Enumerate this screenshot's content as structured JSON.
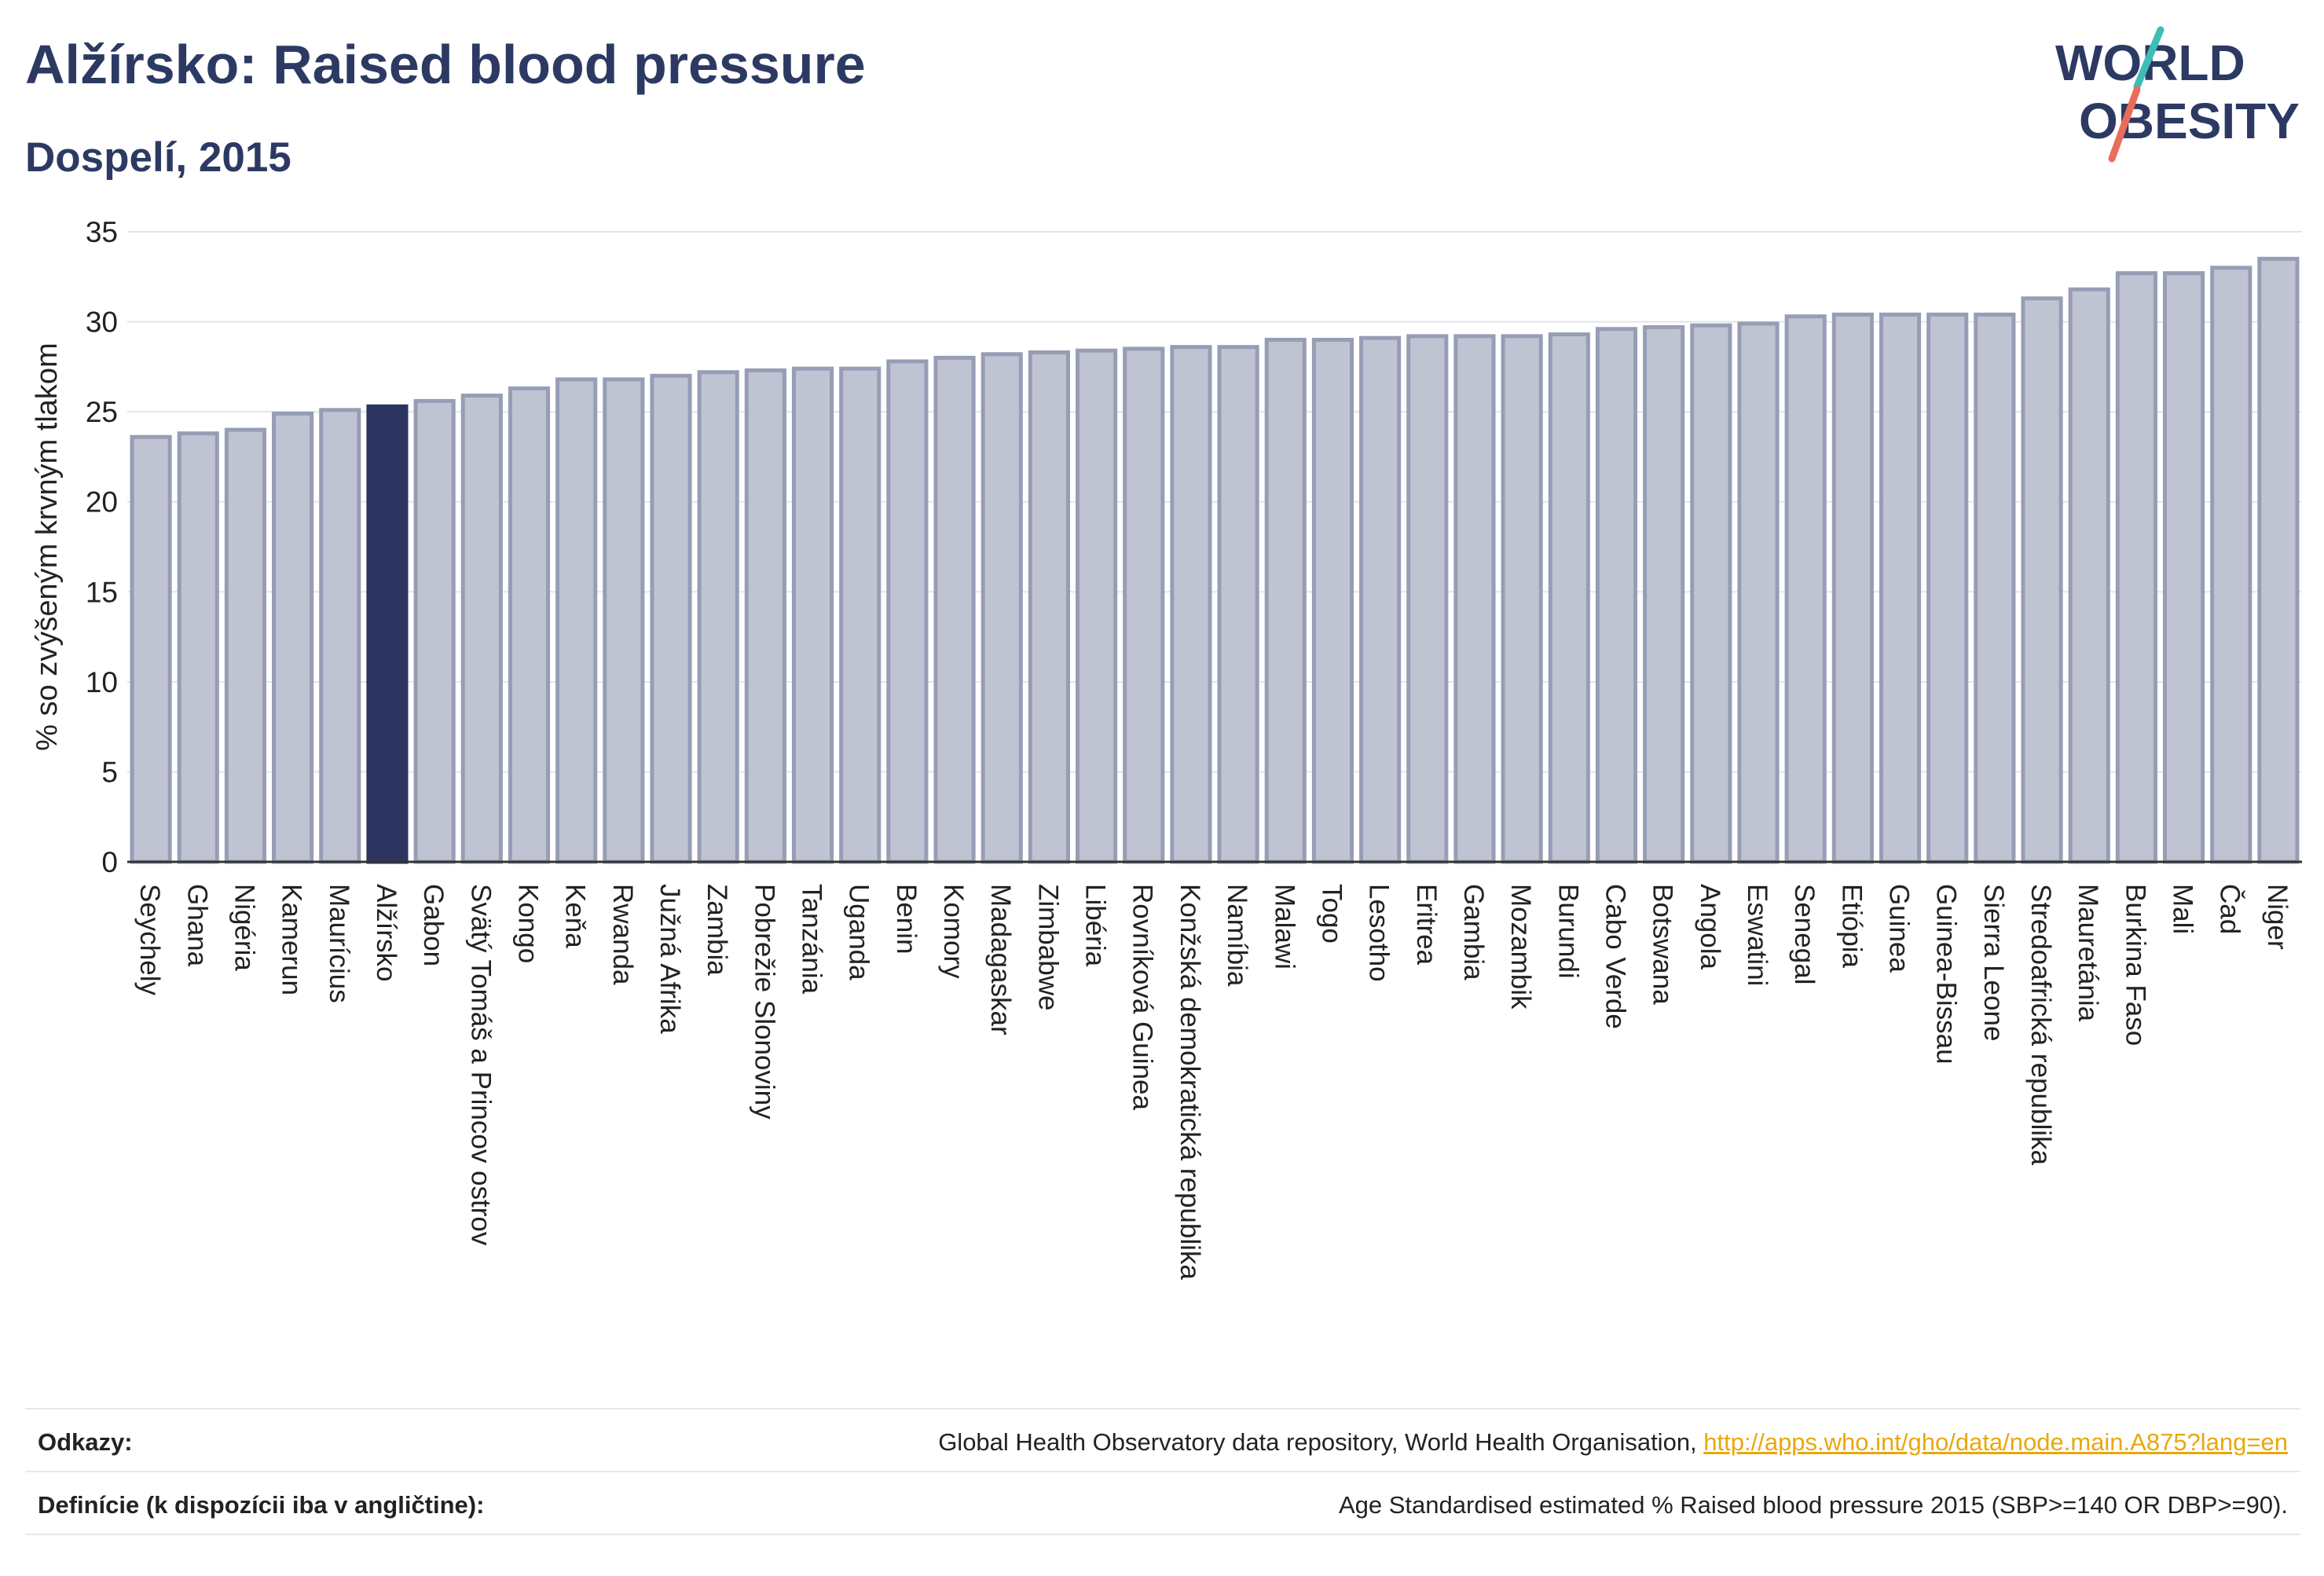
{
  "header": {
    "title": "Alžírsko: Raised blood pressure",
    "subtitle": "Dospelí, 2015"
  },
  "logo": {
    "line1": "WORLD",
    "line2": "OBESITY"
  },
  "footer": {
    "references_label": "Odkazy:",
    "references_text": "Global Health Observatory data repository, World Health Organisation, ",
    "references_link": "http://apps.who.int/gho/data/node.main.A875?lang=en",
    "definitions_label": "Definície (k dispozícii iba v angličtine):",
    "definitions_text": "Age Standardised estimated % Raised blood pressure 2015 (SBP>=140 OR DBP>=90)."
  },
  "colors": {
    "highlight": "#2c3560",
    "bar": "#c0c4d2",
    "bar_stroke": "#969db5",
    "title": "#2c3a63",
    "logo_teal": "#3dbdb6",
    "logo_coral": "#ea6d5c"
  },
  "chart_data": {
    "type": "bar",
    "ylabel": "% so zvýšeným krvným tlakom",
    "ylim": [
      0,
      35
    ],
    "yticks": [
      0,
      5,
      10,
      15,
      20,
      25,
      30,
      35
    ],
    "grid": true,
    "highlight": "Alžírsko",
    "categories": [
      "Seychely",
      "Ghana",
      "Nigéria",
      "Kamerun",
      "Maurícius",
      "Alžírsko",
      "Gabon",
      "Svätý Tomáš a Princov ostrov",
      "Kongo",
      "Keňa",
      "Rwanda",
      "Južná Afrika",
      "Zambia",
      "Pobrežie Slonoviny",
      "Tanzánia",
      "Uganda",
      "Benin",
      "Komory",
      "Madagaskar",
      "Zimbabwe",
      "Libéria",
      "Rovníková Guinea",
      "Konžská demokratická republika",
      "Namíbia",
      "Malawi",
      "Togo",
      "Lesotho",
      "Eritrea",
      "Gambia",
      "Mozambik",
      "Burundi",
      "Cabo Verde",
      "Botswana",
      "Angola",
      "Eswatini",
      "Senegal",
      "Etiópia",
      "Guinea",
      "Guinea-Bissau",
      "Sierra Leone",
      "Stredoafrická republika",
      "Mauretánia",
      "Burkina Faso",
      "Mali",
      "Čad",
      "Niger"
    ],
    "values": [
      23.6,
      23.8,
      24.0,
      24.9,
      25.1,
      25.3,
      25.6,
      25.9,
      26.3,
      26.8,
      26.8,
      27.0,
      27.2,
      27.3,
      27.4,
      27.4,
      27.8,
      28.0,
      28.2,
      28.3,
      28.4,
      28.5,
      28.6,
      28.6,
      29.0,
      29.0,
      29.1,
      29.2,
      29.2,
      29.2,
      29.3,
      29.6,
      29.7,
      29.8,
      29.9,
      30.3,
      30.4,
      30.4,
      30.4,
      30.4,
      31.3,
      31.8,
      32.7,
      32.7,
      33.0,
      33.5
    ]
  }
}
